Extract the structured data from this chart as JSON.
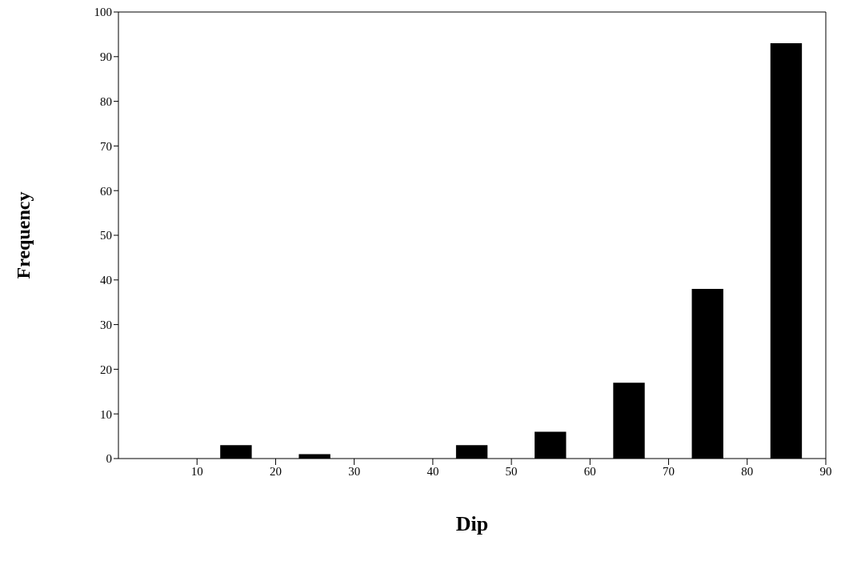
{
  "chart_data": {
    "type": "bar",
    "xlabel": "Dip",
    "ylabel": "Frequency",
    "x": [
      15,
      25,
      45,
      55,
      65,
      75,
      85
    ],
    "values": [
      3,
      1,
      3,
      6,
      17,
      38,
      93
    ],
    "color": "#000000",
    "xlim": [
      0,
      90
    ],
    "xticks": [
      10,
      20,
      30,
      40,
      50,
      60,
      70,
      80,
      90
    ],
    "ylim": [
      0,
      100
    ],
    "yticks": [
      0,
      10,
      20,
      30,
      40,
      50,
      60,
      70,
      80,
      90,
      100
    ]
  }
}
